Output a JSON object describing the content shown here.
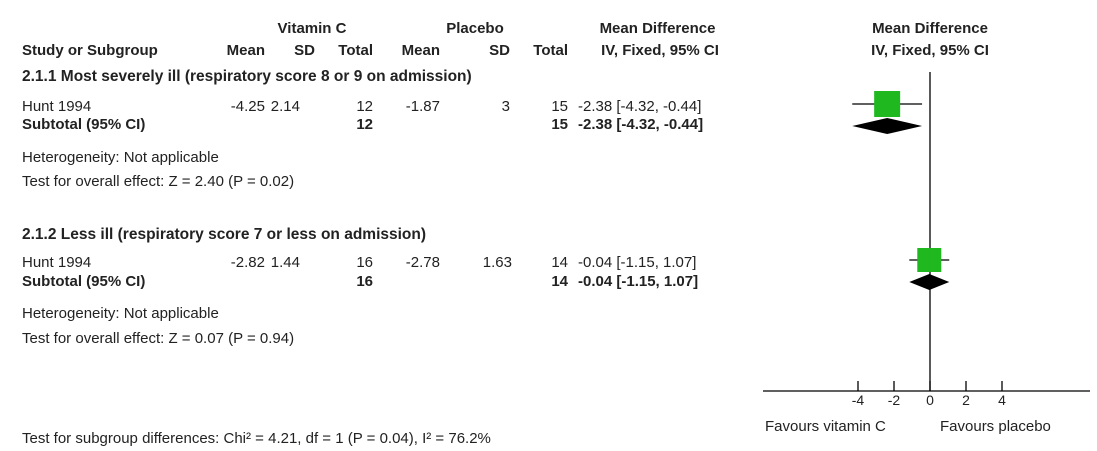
{
  "header": {
    "group1": "Vitamin C",
    "group2": "Placebo",
    "effect_col": "Mean Difference",
    "plot_title": "Mean Difference",
    "plot_method": "IV, Fixed, 95% CI",
    "col_study": "Study or Subgroup",
    "col_mean": "Mean",
    "col_sd": "SD",
    "col_total": "Total",
    "col_method": "IV, Fixed, 95% CI"
  },
  "subgroups": [
    {
      "title": "2.1.1 Most severely ill (respiratory score 8 or 9 on admission)",
      "study": {
        "name": "Hunt 1994",
        "vc_mean": "-4.25",
        "vc_sd": "2.14",
        "vc_total": "12",
        "pl_mean": "-1.87",
        "pl_sd": "3",
        "pl_total": "15",
        "effect": "-2.38 [-4.32, -0.44]"
      },
      "subtotal": {
        "label": "Subtotal (95% CI)",
        "vc_total": "12",
        "pl_total": "15",
        "effect": "-2.38 [-4.32, -0.44]"
      },
      "heterogeneity": "Heterogeneity: Not applicable",
      "overall": "Test for overall effect: Z = 2.40 (P = 0.02)"
    },
    {
      "title": "2.1.2 Less ill (respiratory score 7 or less on admission)",
      "study": {
        "name": "Hunt 1994",
        "vc_mean": "-2.82",
        "vc_sd": "1.44",
        "vc_total": "16",
        "pl_mean": "-2.78",
        "pl_sd": "1.63",
        "pl_total": "14",
        "effect": "-0.04 [-1.15, 1.07]"
      },
      "subtotal": {
        "label": "Subtotal (95% CI)",
        "vc_total": "16",
        "pl_total": "14",
        "effect": "-0.04 [-1.15, 1.07]"
      },
      "heterogeneity": "Heterogeneity: Not applicable",
      "overall": "Test for overall effect: Z = 0.07 (P = 0.94)"
    }
  ],
  "footer": {
    "subgroup_test": "Test for subgroup differences: Chi² = 4.21, df = 1 (P = 0.04), I² = 76.2%",
    "favours_left": "Favours vitamin C",
    "favours_right": "Favours placebo"
  },
  "colors": {
    "square": "#1fb81f",
    "diamond": "#000000",
    "axis": "#000000"
  },
  "chart_data": {
    "type": "forest",
    "xlim": [
      -6,
      6
    ],
    "ticks": [
      -4,
      -2,
      0,
      2,
      4
    ],
    "null_line": 0,
    "studies": [
      {
        "subgroup": "2.1.1",
        "name": "Hunt 1994",
        "estimate": -2.38,
        "ci": [
          -4.32,
          -0.44
        ]
      },
      {
        "subgroup": "2.1.2",
        "name": "Hunt 1994",
        "estimate": -0.04,
        "ci": [
          -1.15,
          1.07
        ]
      }
    ],
    "subtotals": [
      {
        "subgroup": "2.1.1",
        "estimate": -2.38,
        "ci": [
          -4.32,
          -0.44
        ]
      },
      {
        "subgroup": "2.1.2",
        "estimate": -0.04,
        "ci": [
          -1.15,
          1.07
        ]
      }
    ]
  }
}
